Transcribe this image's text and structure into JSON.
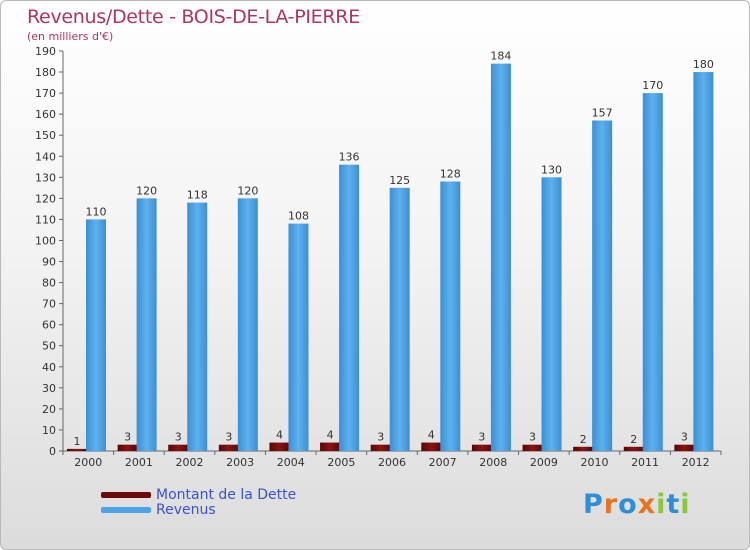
{
  "header": {
    "title": "Revenus/Dette - BOIS-DE-LA-PIERRE",
    "subtitle": "(en milliers d'€)"
  },
  "legend": {
    "items": [
      {
        "label": "Montant de la Dette",
        "color": "#6b0a0a"
      },
      {
        "label": "Revenus",
        "color": "#4aa3e6"
      }
    ]
  },
  "logo": {
    "text": "Proxiti",
    "letters": [
      {
        "ch": "P",
        "color": "#2f8fd6"
      },
      {
        "ch": "r",
        "color": "#e8731e"
      },
      {
        "ch": "o",
        "color": "#2f8fd6"
      },
      {
        "ch": "x",
        "color": "#e8731e"
      },
      {
        "ch": "i",
        "color": "#8cc63f"
      },
      {
        "ch": "t",
        "color": "#2f8fd6"
      },
      {
        "ch": "i",
        "color": "#8cc63f"
      }
    ]
  },
  "chart_data": {
    "type": "bar",
    "title": "Revenus/Dette - BOIS-DE-LA-PIERRE",
    "subtitle": "(en milliers d'€)",
    "xlabel": "",
    "ylabel": "",
    "categories": [
      "2000",
      "2001",
      "2002",
      "2003",
      "2004",
      "2005",
      "2006",
      "2007",
      "2008",
      "2009",
      "2010",
      "2011",
      "2012"
    ],
    "series": [
      {
        "name": "Montant de la Dette",
        "color": "#6b0a0a",
        "values": [
          1,
          3,
          3,
          3,
          4,
          4,
          3,
          4,
          3,
          3,
          2,
          2,
          3
        ]
      },
      {
        "name": "Revenus",
        "color": "#4aa3e6",
        "values": [
          110,
          120,
          118,
          120,
          108,
          136,
          125,
          128,
          184,
          130,
          157,
          170,
          180
        ]
      }
    ],
    "ylim": [
      0,
      190
    ],
    "yticks": [
      0,
      10,
      20,
      30,
      40,
      50,
      60,
      70,
      80,
      90,
      100,
      110,
      120,
      130,
      140,
      150,
      160,
      170,
      180,
      190
    ],
    "grid": false,
    "legend_position": "bottom-left"
  }
}
